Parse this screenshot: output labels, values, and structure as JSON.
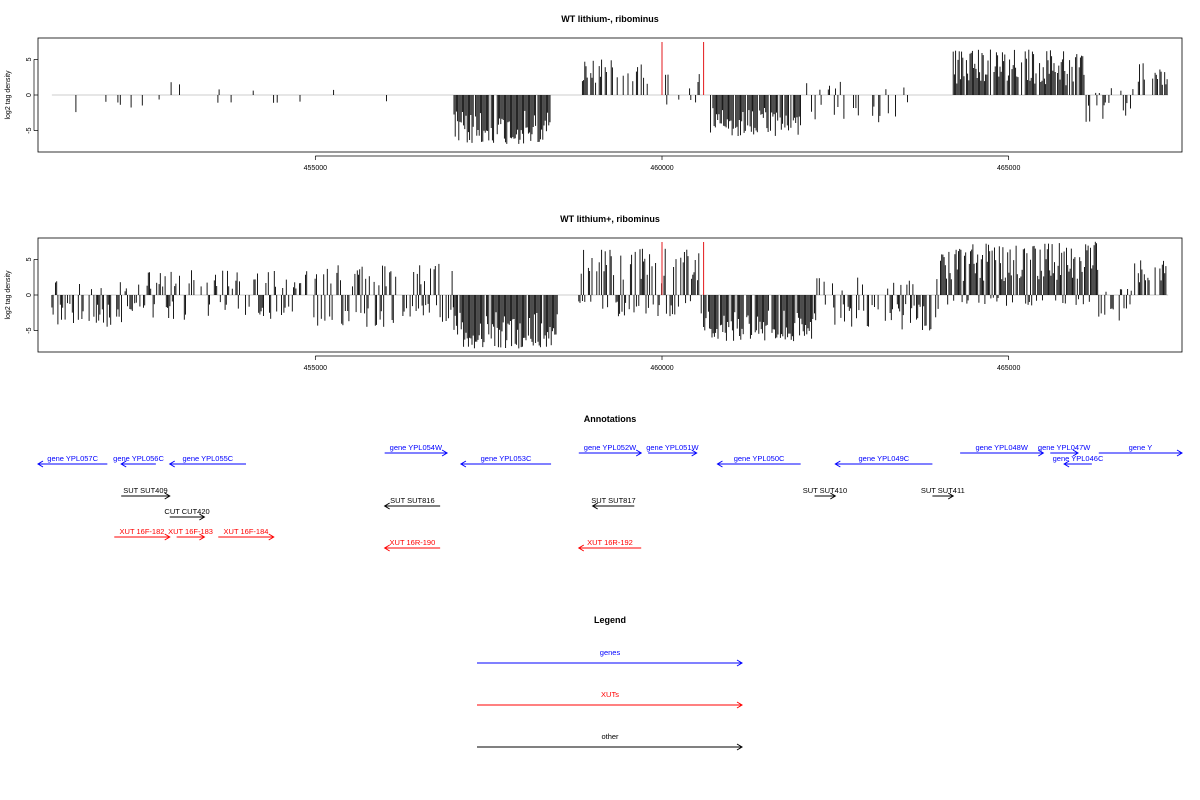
{
  "chart_data": [
    {
      "type": "bar",
      "title": "WT lithium-, ribominus",
      "xlabel": "",
      "ylabel": "log2 tag density",
      "xlim": [
        451000,
        467500
      ],
      "ylim": [
        -8,
        8
      ],
      "x_ticks": [
        455000,
        460000,
        465000
      ],
      "x_tick_labels": [
        "455000",
        "460000",
        "465000"
      ],
      "y_ticks": [
        5,
        0,
        -5
      ],
      "y_tick_labels": [
        "5",
        "0",
        "-5"
      ],
      "markers": [
        460000,
        460600
      ],
      "marker_color": "#e31a1c",
      "bar_color": "#000000",
      "segments": [
        {
          "x0": 451200,
          "x1": 452400,
          "density": 0.12,
          "min": -3,
          "max": 1
        },
        {
          "x0": 452400,
          "x1": 454000,
          "density": 0.1,
          "min": -2,
          "max": 2.3
        },
        {
          "x0": 454000,
          "x1": 455300,
          "density": 0.07,
          "min": -2,
          "max": 1
        },
        {
          "x0": 455300,
          "x1": 456300,
          "density": 0.03,
          "min": -2,
          "max": 0
        },
        {
          "x0": 456300,
          "x1": 457000,
          "density": 0.02,
          "min": 0,
          "max": 1
        },
        {
          "x0": 457000,
          "x1": 458400,
          "density": 0.95,
          "min": -7,
          "max": 0
        },
        {
          "x0": 458400,
          "x1": 458800,
          "density": 0.0,
          "min": 0,
          "max": 0
        },
        {
          "x0": 458800,
          "x1": 459800,
          "density": 0.55,
          "min": 0,
          "max": 5
        },
        {
          "x0": 460000,
          "x1": 460700,
          "density": 0.3,
          "min": -1.5,
          "max": 3
        },
        {
          "x0": 460700,
          "x1": 462000,
          "density": 0.85,
          "min": -6,
          "max": 0
        },
        {
          "x0": 462000,
          "x1": 463600,
          "density": 0.3,
          "min": -4,
          "max": 2
        },
        {
          "x0": 463600,
          "x1": 464200,
          "density": 0.05,
          "min": 0,
          "max": 1
        },
        {
          "x0": 464200,
          "x1": 466100,
          "density": 0.85,
          "min": 0,
          "max": 6.5
        },
        {
          "x0": 466100,
          "x1": 466800,
          "density": 0.35,
          "min": -4,
          "max": 1
        },
        {
          "x0": 466800,
          "x1": 467300,
          "density": 0.45,
          "min": 0,
          "max": 4.5
        }
      ]
    },
    {
      "type": "bar",
      "title": "WT lithium+, ribominus",
      "xlabel": "",
      "ylabel": "log2 tag density",
      "xlim": [
        451000,
        467500
      ],
      "ylim": [
        -8,
        8
      ],
      "x_ticks": [
        455000,
        460000,
        465000
      ],
      "x_tick_labels": [
        "455000",
        "460000",
        "465000"
      ],
      "y_ticks": [
        5,
        0,
        -5
      ],
      "y_tick_labels": [
        "5",
        "0",
        "-5"
      ],
      "markers": [
        460000,
        460600
      ],
      "marker_color": "#e31a1c",
      "bar_color": "#000000",
      "segments": [
        {
          "x0": 451200,
          "x1": 452400,
          "density": 0.7,
          "min": -4.5,
          "max": 2
        },
        {
          "x0": 452400,
          "x1": 455000,
          "density": 0.55,
          "min": -3.5,
          "max": 3.5
        },
        {
          "x0": 455000,
          "x1": 457000,
          "density": 0.6,
          "min": -4.5,
          "max": 4.5
        },
        {
          "x0": 457000,
          "x1": 458500,
          "density": 0.95,
          "min": -7.5,
          "max": 0
        },
        {
          "x0": 458500,
          "x1": 458800,
          "density": 0.0,
          "min": 0,
          "max": 0
        },
        {
          "x0": 458800,
          "x1": 460600,
          "density": 0.75,
          "min": -3,
          "max": 6.5
        },
        {
          "x0": 460600,
          "x1": 462200,
          "density": 0.9,
          "min": -6.5,
          "max": 0
        },
        {
          "x0": 462200,
          "x1": 464000,
          "density": 0.6,
          "min": -5,
          "max": 2.5
        },
        {
          "x0": 464000,
          "x1": 466300,
          "density": 0.95,
          "min": -1.5,
          "max": 7.5
        },
        {
          "x0": 466300,
          "x1": 466800,
          "density": 0.6,
          "min": -4,
          "max": 1
        },
        {
          "x0": 466800,
          "x1": 467300,
          "density": 0.55,
          "min": 0,
          "max": 5
        }
      ]
    }
  ],
  "annotations": {
    "title": "Annotations",
    "rows": [
      {
        "row": 0,
        "items": [
          {
            "label": "gene YPL054W",
            "x0": 456000,
            "x1": 456900,
            "dir": 1,
            "color": "#0000ff"
          },
          {
            "label": "gene YPL052W",
            "x0": 458800,
            "x1": 459700,
            "dir": 1,
            "color": "#0000ff"
          },
          {
            "label": "gene YPL051W",
            "x0": 459800,
            "x1": 460500,
            "dir": 1,
            "color": "#0000ff"
          },
          {
            "label": "gene YPL048W",
            "x0": 464300,
            "x1": 465500,
            "dir": 1,
            "color": "#0000ff"
          },
          {
            "label": "gene YPL047W",
            "x0": 465600,
            "x1": 466000,
            "dir": 1,
            "color": "#0000ff"
          },
          {
            "label": "gene Y",
            "x0": 466300,
            "x1": 467600,
            "dir": 1,
            "color": "#0000ff"
          }
        ]
      },
      {
        "row": 1,
        "items": [
          {
            "label": "gene YPL057C",
            "x0": 451000,
            "x1": 452000,
            "dir": -1,
            "color": "#0000ff"
          },
          {
            "label": "gene YPL056C",
            "x0": 452200,
            "x1": 452700,
            "dir": -1,
            "color": "#0000ff"
          },
          {
            "label": "gene YPL055C",
            "x0": 452900,
            "x1": 454000,
            "dir": -1,
            "color": "#0000ff"
          },
          {
            "label": "gene YPL053C",
            "x0": 457100,
            "x1": 458400,
            "dir": -1,
            "color": "#0000ff"
          },
          {
            "label": "gene YPL050C",
            "x0": 460800,
            "x1": 462000,
            "dir": -1,
            "color": "#0000ff"
          },
          {
            "label": "gene YPL049C",
            "x0": 462500,
            "x1": 463900,
            "dir": -1,
            "color": "#0000ff"
          },
          {
            "label": "gene YPL046C",
            "x0": 465800,
            "x1": 466200,
            "dir": -1,
            "color": "#0000ff"
          }
        ]
      },
      {
        "row": 2,
        "items": [
          {
            "label": "SUT SUT409",
            "x0": 452200,
            "x1": 452900,
            "dir": 1,
            "color": "#000000"
          },
          {
            "label": "SUT SUT410",
            "x0": 462200,
            "x1": 462500,
            "dir": 1,
            "color": "#000000"
          },
          {
            "label": "SUT SUT411",
            "x0": 463900,
            "x1": 464200,
            "dir": 1,
            "color": "#000000"
          }
        ]
      },
      {
        "row": 3,
        "items": [
          {
            "label": "SUT SUT816",
            "x0": 456000,
            "x1": 456800,
            "dir": -1,
            "color": "#000000"
          },
          {
            "label": "SUT SUT817",
            "x0": 459000,
            "x1": 459600,
            "dir": -1,
            "color": "#000000"
          }
        ]
      },
      {
        "row": 4,
        "items": [
          {
            "label": "CUT CUT420",
            "x0": 452900,
            "x1": 453400,
            "dir": 1,
            "color": "#000000"
          }
        ]
      },
      {
        "row": 5,
        "items": [
          {
            "label": "XUT 16F-182",
            "x0": 452100,
            "x1": 452900,
            "dir": 1,
            "color": "#ff0000"
          },
          {
            "label": "XUT 16F-183",
            "x0": 453000,
            "x1": 453400,
            "dir": 1,
            "color": "#ff0000"
          },
          {
            "label": "XUT 16F-184",
            "x0": 453600,
            "x1": 454400,
            "dir": 1,
            "color": "#ff0000"
          }
        ]
      },
      {
        "row": 6,
        "items": [
          {
            "label": "XUT 16R-190",
            "x0": 456000,
            "x1": 456800,
            "dir": -1,
            "color": "#ff0000"
          },
          {
            "label": "XUT 16R-192",
            "x0": 458800,
            "x1": 459700,
            "dir": -1,
            "color": "#ff0000"
          }
        ]
      }
    ]
  },
  "legend": {
    "title": "Legend",
    "items": [
      {
        "label": "genes",
        "color": "#0000ff"
      },
      {
        "label": "XUTs",
        "color": "#ff0000"
      },
      {
        "label": "other",
        "color": "#000000"
      }
    ]
  }
}
